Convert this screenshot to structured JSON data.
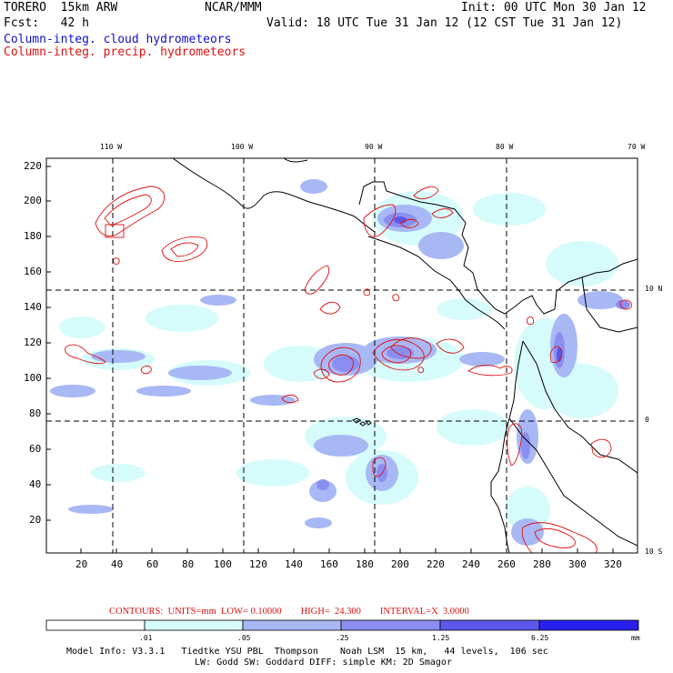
{
  "header": {
    "model": "TORERO  15km ARW",
    "org": "NCAR/MMM",
    "init": "Init: 00 UTC Mon 30 Jan 12",
    "fcst": "Fcst:   42 h",
    "valid": "Valid: 18 UTC Tue 31 Jan 12 (12 CST Tue 31 Jan 12)",
    "field_cloud": "Column-integ. cloud hydrometeors",
    "field_precip": "Column-integ. precip. hydrometeors"
  },
  "colors": {
    "cloud_text": "#1010d0",
    "precip_text": "#e01010",
    "fill_levels": [
      "#ffffff",
      "#d6fbfb",
      "#a8b8f4",
      "#8a8ef0",
      "#5a58ea",
      "#2a20ee"
    ],
    "contour": "#e01010",
    "coast": "#000000"
  },
  "longitude_labels": [
    "110 W",
    "100 W",
    "90 W",
    "80 W",
    "70 W"
  ],
  "latitude_labels": [
    "10 N",
    "0",
    "10 S"
  ],
  "y_ticks": [
    "220",
    "200",
    "180",
    "160",
    "140",
    "120",
    "100",
    "80",
    "60",
    "40",
    "20"
  ],
  "x_ticks": [
    "20",
    "40",
    "60",
    "80",
    "100",
    "120",
    "140",
    "160",
    "180",
    "200",
    "220",
    "240",
    "260",
    "280",
    "300",
    "320"
  ],
  "contour_info": {
    "text": "CONTOURS:  UNITS=mm  LOW= 0.10000        HIGH=  24.300        INTERVAL=X  3.0000"
  },
  "colorbar": {
    "labels": [
      ".01",
      ".05",
      ".25",
      "1.25",
      "6.25"
    ],
    "unit": "mm"
  },
  "footer": {
    "line1": "Model Info: V3.3.1   Tiedtke YSU PBL  Thompson    Noah LSM  15 km,   44 levels,  106 sec",
    "line2": "LW: Godd SW: Goddard DIFF: simple KM: 2D Smagor"
  }
}
